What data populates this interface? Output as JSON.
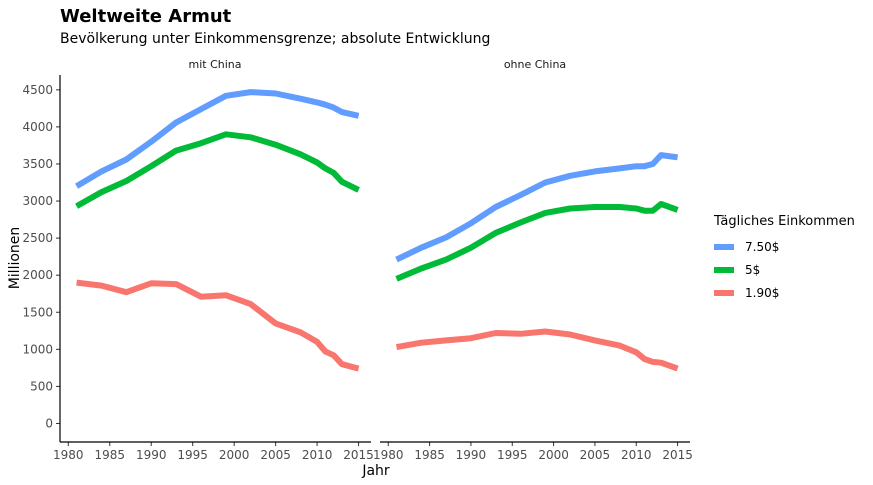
{
  "chart_data": {
    "type": "line",
    "title": "Weltweite Armut",
    "subtitle": "Bevölkerung unter Einkommensgrenze; absolute Entwicklung",
    "xlabel": "Jahr",
    "ylabel": "Millionen",
    "xlim": [
      1979,
      2016.5
    ],
    "ylim": [
      -250,
      4700
    ],
    "x_ticks": [
      1980,
      1985,
      1990,
      1995,
      2000,
      2005,
      2010,
      2015
    ],
    "y_ticks": [
      0,
      500,
      1000,
      1500,
      2000,
      2500,
      3000,
      3500,
      4000,
      4500
    ],
    "grid": false,
    "legend": {
      "title": "Tägliches Einkommen",
      "position": "right"
    },
    "panels": [
      {
        "label": "mit China",
        "series": [
          {
            "name": "7.50$",
            "color": "#619CFF",
            "x": [
              1981,
              1984,
              1987,
              1990,
              1993,
              1996,
              1999,
              2002,
              2005,
              2008,
              2010,
              2011,
              2012,
              2013,
              2015
            ],
            "y": [
              3200,
              3400,
              3560,
              3800,
              4060,
              4240,
              4420,
              4470,
              4450,
              4380,
              4330,
              4300,
              4260,
              4200,
              4150
            ]
          },
          {
            "name": "5$",
            "color": "#00BA38",
            "x": [
              1981,
              1984,
              1987,
              1990,
              1993,
              1996,
              1999,
              2002,
              2005,
              2008,
              2010,
              2011,
              2012,
              2013,
              2015
            ],
            "y": [
              2930,
              3120,
              3270,
              3470,
              3680,
              3780,
              3900,
              3860,
              3760,
              3630,
              3520,
              3440,
              3380,
              3260,
              3150
            ]
          },
          {
            "name": "1.90$",
            "color": "#F8766D",
            "x": [
              1981,
              1984,
              1987,
              1990,
              1993,
              1996,
              1999,
              2002,
              2005,
              2008,
              2010,
              2011,
              2012,
              2013,
              2015
            ],
            "y": [
              1900,
              1860,
              1770,
              1890,
              1880,
              1710,
              1730,
              1610,
              1350,
              1230,
              1100,
              970,
              920,
              800,
              740
            ]
          }
        ]
      },
      {
        "label": "ohne China",
        "series": [
          {
            "name": "7.50$",
            "color": "#619CFF",
            "x": [
              1981,
              1984,
              1987,
              1990,
              1993,
              1996,
              1999,
              2002,
              2005,
              2008,
              2010,
              2011,
              2012,
              2013,
              2015
            ],
            "y": [
              2210,
              2370,
              2510,
              2700,
              2920,
              3080,
              3250,
              3340,
              3400,
              3440,
              3470,
              3470,
              3500,
              3620,
              3590
            ]
          },
          {
            "name": "5$",
            "color": "#00BA38",
            "x": [
              1981,
              1984,
              1987,
              1990,
              1993,
              1996,
              1999,
              2002,
              2005,
              2008,
              2010,
              2011,
              2012,
              2013,
              2015
            ],
            "y": [
              1950,
              2090,
              2210,
              2370,
              2570,
              2710,
              2840,
              2900,
              2920,
              2920,
              2900,
              2870,
              2870,
              2960,
              2880
            ]
          },
          {
            "name": "1.90$",
            "color": "#F8766D",
            "x": [
              1981,
              1984,
              1987,
              1990,
              1993,
              1996,
              1999,
              2002,
              2005,
              2008,
              2010,
              2011,
              2012,
              2013,
              2015
            ],
            "y": [
              1030,
              1090,
              1120,
              1150,
              1220,
              1210,
              1240,
              1200,
              1120,
              1050,
              960,
              870,
              830,
              820,
              740
            ]
          }
        ]
      }
    ]
  }
}
